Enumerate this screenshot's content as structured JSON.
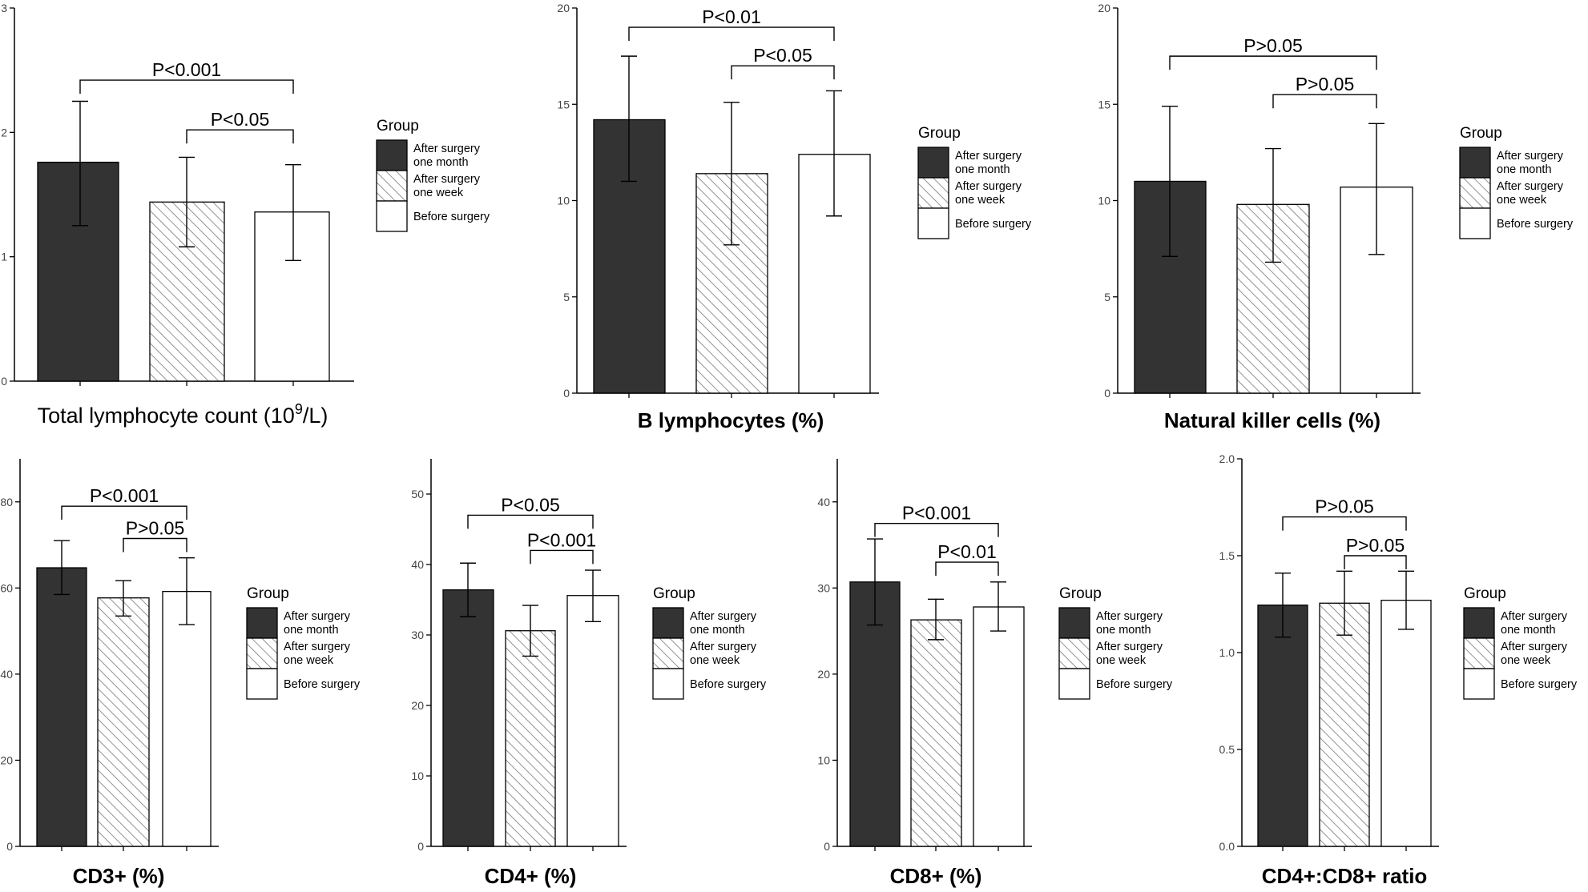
{
  "legend_title": "Group",
  "groups": [
    "After surgery\none month",
    "After surgery\none week",
    "Before surgery"
  ],
  "colors": {
    "dark": "#333333",
    "hatch": "#777777",
    "light": "#ffffff",
    "axis": "#000000"
  },
  "chart_data": [
    {
      "type": "bar",
      "title": "Total lymphocyte count (10⁹/L)",
      "title_main": "Total lymphocyte count (10",
      "title_sup": "9",
      "title_tail": "/L)",
      "categories": [
        "After surgery one month",
        "After surgery one week",
        "Before surgery"
      ],
      "values": [
        1.76,
        1.44,
        1.36
      ],
      "errors": [
        [
          1.25,
          2.25
        ],
        [
          1.08,
          1.8
        ],
        [
          0.97,
          1.74
        ]
      ],
      "ylim": [
        0,
        3
      ],
      "yticks": [
        "0",
        "1",
        "2",
        "3"
      ],
      "brackets": [
        {
          "label": "P<0.001",
          "from": 0,
          "to": 2,
          "y": 2.42
        },
        {
          "label": "P<0.05",
          "from": 1,
          "to": 2,
          "y": 2.02
        }
      ]
    },
    {
      "type": "bar",
      "title": "B lymphocytes  (%)",
      "categories": [
        "After surgery one month",
        "After surgery one week",
        "Before surgery"
      ],
      "values": [
        14.2,
        11.4,
        12.4
      ],
      "errors": [
        [
          11.0,
          17.5
        ],
        [
          7.7,
          15.1
        ],
        [
          9.2,
          15.7
        ]
      ],
      "ylim": [
        0,
        20
      ],
      "yticks": [
        "0",
        "5",
        "10",
        "15",
        "20"
      ],
      "brackets": [
        {
          "label": "P<0.01",
          "from": 0,
          "to": 2,
          "y": 19.0
        },
        {
          "label": "P<0.05",
          "from": 1,
          "to": 2,
          "y": 17.0
        }
      ]
    },
    {
      "type": "bar",
      "title": "Natural killer cells (%)",
      "categories": [
        "After surgery one month",
        "After surgery one week",
        "Before surgery"
      ],
      "values": [
        11.0,
        9.8,
        10.7
      ],
      "errors": [
        [
          7.1,
          14.9
        ],
        [
          6.8,
          12.7
        ],
        [
          7.2,
          14.0
        ]
      ],
      "ylim": [
        0,
        20
      ],
      "yticks": [
        "0",
        "5",
        "10",
        "15",
        "20"
      ],
      "brackets": [
        {
          "label": "P>0.05",
          "from": 0,
          "to": 2,
          "y": 17.5
        },
        {
          "label": "P>0.05",
          "from": 1,
          "to": 2,
          "y": 15.5
        }
      ]
    },
    {
      "type": "bar",
      "title": "CD3+ (%)",
      "categories": [
        "After surgery one month",
        "After surgery one week",
        "Before surgery"
      ],
      "values": [
        64.7,
        57.7,
        59.2
      ],
      "errors": [
        [
          58.5,
          71.0
        ],
        [
          53.5,
          61.7
        ],
        [
          51.5,
          67.0
        ]
      ],
      "ylim": [
        0,
        90
      ],
      "yticks": [
        "0",
        "20",
        "40",
        "60",
        "80"
      ],
      "brackets": [
        {
          "label": "P<0.001",
          "from": 0,
          "to": 2,
          "y": 79.0
        },
        {
          "label": "P>0.05",
          "from": 1,
          "to": 2,
          "y": 71.5
        }
      ]
    },
    {
      "type": "bar",
      "title": "CD4+ (%)",
      "categories": [
        "After surgery one month",
        "After surgery one week",
        "Before surgery"
      ],
      "values": [
        36.4,
        30.6,
        35.6
      ],
      "errors": [
        [
          32.6,
          40.2
        ],
        [
          27.0,
          34.2
        ],
        [
          31.9,
          39.2
        ]
      ],
      "ylim": [
        0,
        55
      ],
      "yticks": [
        "0",
        "10",
        "20",
        "30",
        "40",
        "50"
      ],
      "brackets": [
        {
          "label": "P<0.05",
          "from": 0,
          "to": 2,
          "y": 47.0
        },
        {
          "label": "P<0.001",
          "from": 1,
          "to": 2,
          "y": 42.0
        }
      ]
    },
    {
      "type": "bar",
      "title": "CD8+ (%)",
      "categories": [
        "After surgery one month",
        "After surgery one week",
        "Before surgery"
      ],
      "values": [
        30.7,
        26.3,
        27.8
      ],
      "errors": [
        [
          25.7,
          35.7
        ],
        [
          24.0,
          28.7
        ],
        [
          25.0,
          30.7
        ]
      ],
      "ylim": [
        0,
        45
      ],
      "yticks": [
        "0",
        "10",
        "20",
        "30",
        "40"
      ],
      "brackets": [
        {
          "label": "P<0.001",
          "from": 0,
          "to": 2,
          "y": 37.5
        },
        {
          "label": "P<0.01",
          "from": 1,
          "to": 2,
          "y": 33.0
        }
      ]
    },
    {
      "type": "bar",
      "title": "CD4+:CD8+ ratio",
      "categories": [
        "After surgery one month",
        "After surgery one week",
        "Before surgery"
      ],
      "values": [
        1.245,
        1.255,
        1.27
      ],
      "errors": [
        [
          1.08,
          1.41
        ],
        [
          1.09,
          1.42
        ],
        [
          1.12,
          1.42
        ]
      ],
      "ylim": [
        0,
        2
      ],
      "yticks": [
        "0.0",
        "0.5",
        "1.0",
        "1.5",
        "2.0"
      ],
      "brackets": [
        {
          "label": "P>0.05",
          "from": 0,
          "to": 2,
          "y": 1.7
        },
        {
          "label": "P>0.05",
          "from": 1,
          "to": 2,
          "y": 1.5
        }
      ]
    }
  ]
}
